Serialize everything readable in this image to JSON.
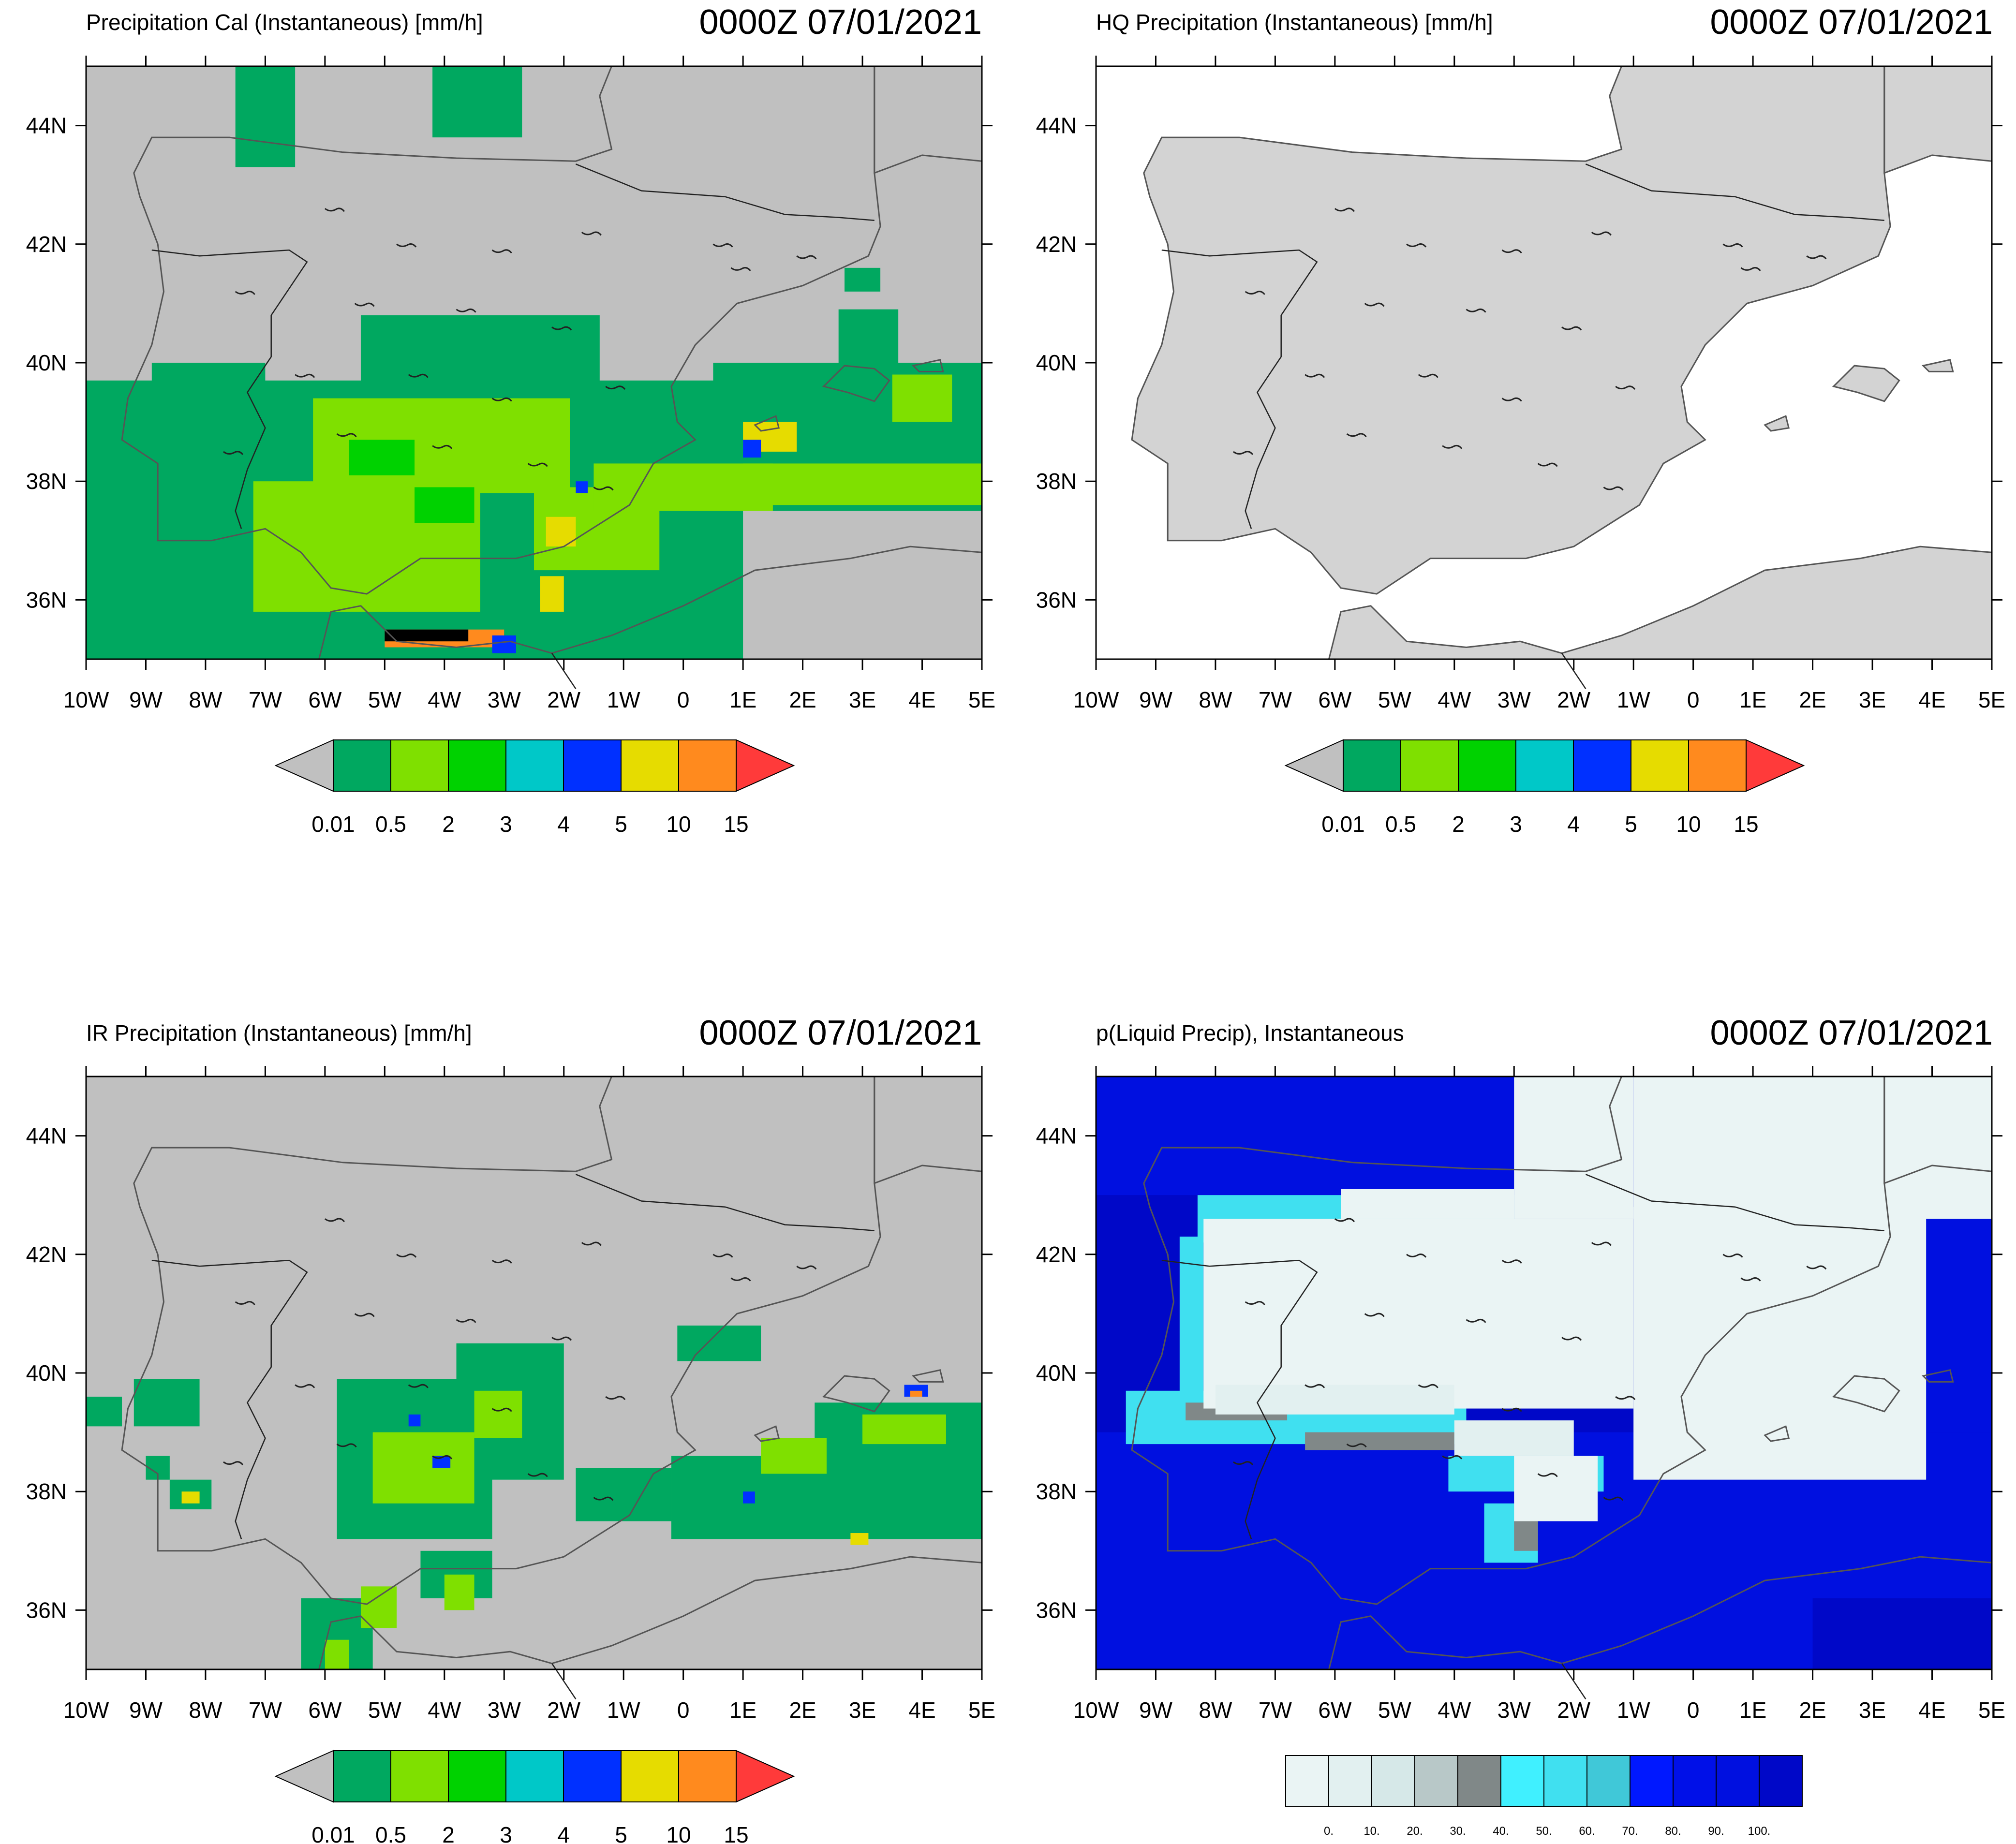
{
  "panels": [
    {
      "id": "precip-cal",
      "title": "Precipitation Cal (Instantaneous) [mm/h]",
      "datetime": "0000Z 07/01/2021",
      "field_bg": "#c0c0c0",
      "land": "#c0c0c0",
      "sea": "#c0c0c0",
      "colorbar_type": "precip",
      "patches": [
        {
          "c": 0,
          "b": [
            -8.9,
            38.4,
            -7.0,
            40.0
          ]
        },
        {
          "c": 0,
          "b": [
            -10.0,
            35.0,
            1.0,
            39.7
          ]
        },
        {
          "c": 0,
          "b": [
            0.5,
            37.5,
            5.0,
            40.0
          ]
        },
        {
          "c": 0,
          "b": [
            -5.4,
            39.5,
            -1.4,
            40.8
          ]
        },
        {
          "c": 0,
          "b": [
            -7.5,
            43.3,
            -6.5,
            45.0
          ]
        },
        {
          "c": 0,
          "b": [
            -4.2,
            43.8,
            -2.7,
            45.0
          ]
        },
        {
          "c": 0,
          "b": [
            2.6,
            39.9,
            3.6,
            40.9
          ]
        },
        {
          "c": 0,
          "b": [
            2.7,
            41.2,
            3.3,
            41.6
          ]
        },
        {
          "c": 1,
          "b": [
            -7.2,
            35.8,
            -3.4,
            38.0
          ]
        },
        {
          "c": 1,
          "b": [
            -6.2,
            37.8,
            -1.9,
            39.4
          ]
        },
        {
          "c": 1,
          "b": [
            -2.5,
            36.5,
            -0.4,
            37.9
          ]
        },
        {
          "c": 1,
          "b": [
            -1.5,
            37.5,
            1.5,
            38.3
          ]
        },
        {
          "c": 1,
          "b": [
            1.0,
            37.6,
            5.0,
            38.3
          ]
        },
        {
          "c": 1,
          "b": [
            3.5,
            39.0,
            4.5,
            39.8
          ]
        },
        {
          "c": 2,
          "b": [
            -5.6,
            38.1,
            -4.5,
            38.7
          ]
        },
        {
          "c": 2,
          "b": [
            -4.5,
            37.3,
            -3.5,
            37.9
          ]
        },
        {
          "c": 5,
          "b": [
            1.0,
            38.5,
            1.9,
            39.0
          ]
        },
        {
          "c": 5,
          "b": [
            -2.4,
            35.8,
            -2.0,
            36.4
          ]
        },
        {
          "c": 5,
          "b": [
            -2.3,
            36.9,
            -1.8,
            37.4
          ]
        },
        {
          "c": 6,
          "b": [
            -5.0,
            35.2,
            -3.0,
            35.5
          ]
        },
        {
          "c": 7,
          "b": [
            -5.0,
            35.3,
            -3.6,
            35.5
          ]
        },
        {
          "c": 4,
          "b": [
            -3.2,
            35.1,
            -2.8,
            35.4
          ]
        },
        {
          "c": 4,
          "b": [
            1.0,
            38.4,
            1.3,
            38.7
          ]
        },
        {
          "c": 4,
          "b": [
            -1.8,
            37.8,
            -1.6,
            38.0
          ]
        }
      ]
    },
    {
      "id": "hq-precip",
      "title": "HQ Precipitation (Instantaneous) [mm/h]",
      "datetime": "0000Z 07/01/2021",
      "field_bg": "#ffffff",
      "land": "#d3d3d3",
      "sea": "#ffffff",
      "colorbar_type": "precip",
      "patches": []
    },
    {
      "id": "ir-precip",
      "title": "IR Precipitation (Instantaneous) [mm/h]",
      "datetime": "0000Z 07/01/2021",
      "field_bg": "#c0c0c0",
      "land": "#c0c0c0",
      "sea": "#c0c0c0",
      "colorbar_type": "precip",
      "patches": [
        {
          "c": 0,
          "b": [
            -5.8,
            37.2,
            -3.2,
            39.9
          ]
        },
        {
          "c": 0,
          "b": [
            -3.8,
            38.2,
            -2.0,
            40.5
          ]
        },
        {
          "c": 0,
          "b": [
            -1.8,
            37.5,
            -0.2,
            38.4
          ]
        },
        {
          "c": 0,
          "b": [
            -0.2,
            37.2,
            3.0,
            38.6
          ]
        },
        {
          "c": 0,
          "b": [
            2.2,
            37.2,
            5.0,
            39.5
          ]
        },
        {
          "c": 0,
          "b": [
            2.5,
            38.3,
            3.5,
            39.3
          ]
        },
        {
          "c": 0,
          "b": [
            -4.4,
            36.2,
            -3.2,
            37.0
          ]
        },
        {
          "c": 0,
          "b": [
            -6.4,
            35.0,
            -5.2,
            36.2
          ]
        },
        {
          "c": 0,
          "b": [
            -9.2,
            39.1,
            -8.1,
            39.9
          ]
        },
        {
          "c": 0,
          "b": [
            -9.0,
            38.2,
            -8.6,
            38.6
          ]
        },
        {
          "c": 0,
          "b": [
            -8.6,
            37.7,
            -7.9,
            38.2
          ]
        },
        {
          "c": 0,
          "b": [
            -10.0,
            39.1,
            -9.4,
            39.6
          ]
        },
        {
          "c": 0,
          "b": [
            -0.1,
            40.2,
            1.3,
            40.8
          ]
        },
        {
          "c": 1,
          "b": [
            -5.2,
            37.8,
            -3.5,
            39.0
          ]
        },
        {
          "c": 1,
          "b": [
            -3.5,
            38.9,
            -2.7,
            39.7
          ]
        },
        {
          "c": 1,
          "b": [
            1.3,
            38.3,
            2.4,
            38.9
          ]
        },
        {
          "c": 1,
          "b": [
            -5.4,
            35.7,
            -4.8,
            36.4
          ]
        },
        {
          "c": 1,
          "b": [
            -6.0,
            35.0,
            -5.6,
            35.5
          ]
        },
        {
          "c": 1,
          "b": [
            3.0,
            38.8,
            4.4,
            39.3
          ]
        },
        {
          "c": 1,
          "b": [
            -4.0,
            36.0,
            -3.5,
            36.6
          ]
        },
        {
          "c": 4,
          "b": [
            -4.6,
            39.1,
            -4.4,
            39.3
          ]
        },
        {
          "c": 4,
          "b": [
            -4.2,
            38.4,
            -3.9,
            38.6
          ]
        },
        {
          "c": 4,
          "b": [
            3.7,
            39.6,
            4.1,
            39.8
          ]
        },
        {
          "c": 5,
          "b": [
            -8.4,
            37.8,
            -8.1,
            38.0
          ]
        },
        {
          "c": 6,
          "b": [
            3.8,
            39.6,
            4.0,
            39.7
          ]
        },
        {
          "c": 5,
          "b": [
            2.8,
            37.1,
            3.1,
            37.3
          ]
        },
        {
          "c": 4,
          "b": [
            1.0,
            37.8,
            1.2,
            38.0
          ]
        }
      ]
    },
    {
      "id": "p-liquid",
      "title": "p(Liquid Precip), Instantaneous",
      "datetime": "0000Z 07/01/2021",
      "field_bg": "#0010e0",
      "land": "#0010e0",
      "sea": "#0010e0",
      "colorbar_type": "prob",
      "patches": [
        {
          "c": 11,
          "b": [
            -10.0,
            35.0,
            5.0,
            45.0
          ]
        },
        {
          "c": 10,
          "b": [
            -10.0,
            35.0,
            5.0,
            39.0
          ]
        },
        {
          "c": 10,
          "b": [
            -1.0,
            39.0,
            5.0,
            45.0
          ]
        },
        {
          "c": 10,
          "b": [
            -10.0,
            43.0,
            -1.0,
            45.0
          ]
        },
        {
          "c": 11,
          "b": [
            2.0,
            35.0,
            5.0,
            36.2
          ]
        },
        {
          "c": 6,
          "b": [
            -9.5,
            38.8,
            -3.8,
            39.7
          ]
        },
        {
          "c": 6,
          "b": [
            -4.1,
            38.0,
            -1.5,
            38.6
          ]
        },
        {
          "c": 6,
          "b": [
            -8.6,
            39.5,
            -8.2,
            42.3
          ]
        },
        {
          "c": 6,
          "b": [
            -8.3,
            42.2,
            -3.0,
            43.0
          ]
        },
        {
          "c": 6,
          "b": [
            -3.5,
            36.8,
            -2.6,
            37.8
          ]
        },
        {
          "c": 6,
          "b": [
            3.0,
            42.6,
            5.0,
            43.2
          ]
        },
        {
          "c": 4,
          "b": [
            -8.5,
            39.2,
            -6.8,
            39.5
          ]
        },
        {
          "c": 4,
          "b": [
            -6.5,
            38.7,
            -4.0,
            39.0
          ]
        },
        {
          "c": 4,
          "b": [
            -3.0,
            37.0,
            -2.6,
            37.5
          ]
        },
        {
          "c": 0,
          "b": [
            -8.2,
            39.4,
            -1.0,
            42.6
          ]
        },
        {
          "c": 0,
          "b": [
            -1.0,
            38.2,
            3.9,
            42.8
          ]
        },
        {
          "c": 0,
          "b": [
            -5.9,
            42.6,
            -3.0,
            43.1
          ]
        },
        {
          "c": 0,
          "b": [
            -3.0,
            42.6,
            -1.0,
            45.0
          ]
        },
        {
          "c": 0,
          "b": [
            -1.0,
            42.6,
            5.0,
            45.0
          ]
        },
        {
          "c": 0,
          "b": [
            -3.0,
            37.5,
            -1.6,
            38.6
          ]
        },
        {
          "c": 1,
          "b": [
            -8.0,
            39.3,
            -4.0,
            39.8
          ]
        },
        {
          "c": 1,
          "b": [
            -4.0,
            38.6,
            -2.0,
            39.2
          ]
        },
        {
          "c": 0,
          "b": [
            3.0,
            42.8,
            4.0,
            43.2
          ]
        }
      ]
    }
  ],
  "axes": {
    "x_ticks": [
      "10W",
      "9W",
      "8W",
      "7W",
      "6W",
      "5W",
      "4W",
      "3W",
      "2W",
      "1W",
      "0",
      "1E",
      "2E",
      "3E",
      "4E",
      "5E"
    ],
    "y_ticks": [
      "36N",
      "38N",
      "40N",
      "42N",
      "44N"
    ],
    "lon_range": [
      -10,
      5
    ],
    "lat_range": [
      35,
      45
    ],
    "y_tick_values": [
      36,
      38,
      40,
      42,
      44
    ]
  },
  "colorbars": {
    "precip": {
      "low_end_color": "#c0c0c0",
      "high_end_color": "#ff3a3a",
      "colors": [
        "#00a860",
        "#7fe000",
        "#00d200",
        "#00c8c8",
        "#0030ff",
        "#e6dc00",
        "#ff8a1e"
      ],
      "labels": [
        "0.01",
        "0.5",
        "2",
        "3",
        "4",
        "5",
        "10",
        "15"
      ]
    },
    "prob": {
      "colors": [
        "#eaf4f4",
        "#e2f0f0",
        "#d6e8e8",
        "#b8c8c8",
        "#808888",
        "#40f0ff",
        "#40e0f0",
        "#40c8d8",
        "#0018ff",
        "#0010e8",
        "#0010e0",
        "#0008c8"
      ],
      "labels": [
        "0.",
        "10.",
        "20.",
        "30.",
        "40.",
        "50.",
        "60.",
        "70.",
        "80.",
        "90.",
        "100."
      ]
    }
  },
  "map": {
    "coast_color": "#555555",
    "border_color": "#222222"
  }
}
